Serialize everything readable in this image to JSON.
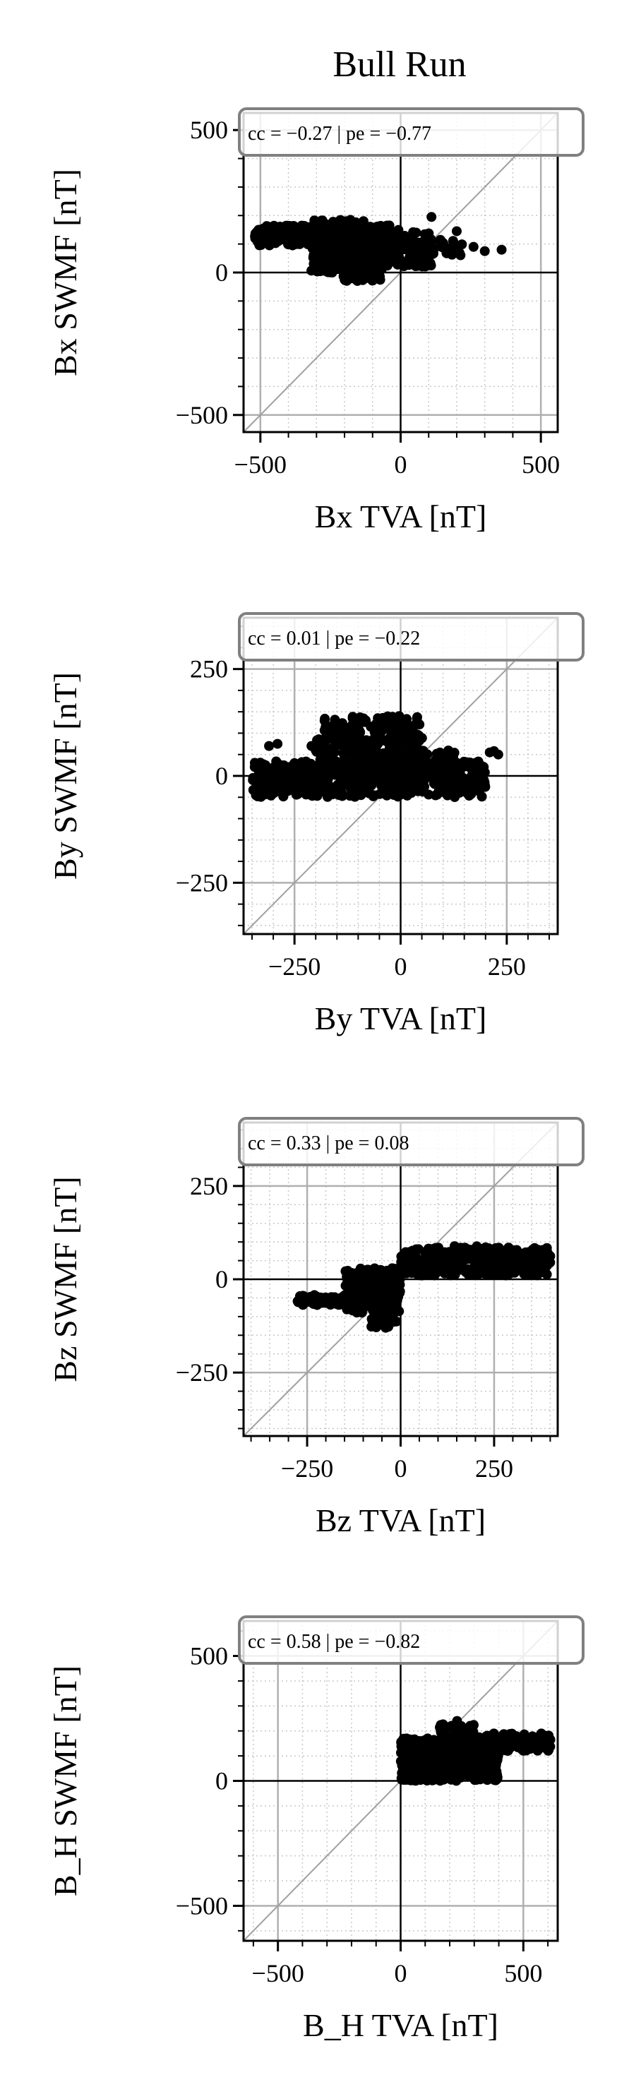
{
  "title": "Bull Run",
  "chart_data": [
    {
      "type": "scatter",
      "xlabel": "Bx TVA [nT]",
      "ylabel": "Bx SWMF [nT]",
      "xlim": [
        -560,
        560
      ],
      "ylim": [
        -560,
        560
      ],
      "xticks": [
        -500,
        0,
        500
      ],
      "yticks": [
        -500,
        0,
        500
      ],
      "xticklabels": [
        "−500",
        "0",
        "500"
      ],
      "yticklabels": [
        "−500",
        "0",
        "500"
      ],
      "major_grid_step": 500,
      "minor_grid_step": 100,
      "stats_label": "cc = −0.27 | pe = −0.77",
      "stats": {
        "cc": -0.27,
        "pe": -0.77
      },
      "clusters": [
        {
          "x": [
            -520,
            -40
          ],
          "y": [
            95,
            165
          ],
          "n": 300
        },
        {
          "x": [
            -320,
            -130
          ],
          "y": [
            0,
            185
          ],
          "n": 240
        },
        {
          "x": [
            -130,
            110
          ],
          "y": [
            20,
            150
          ],
          "n": 200
        },
        {
          "x": [
            -210,
            -60
          ],
          "y": [
            -30,
            55
          ],
          "n": 80
        },
        {
          "x": [
            60,
            220
          ],
          "y": [
            60,
            120
          ],
          "n": 40
        }
      ],
      "points": [
        [
          -460,
          140
        ],
        [
          -480,
          130
        ],
        [
          110,
          195
        ],
        [
          200,
          145
        ],
        [
          260,
          90
        ],
        [
          300,
          75
        ],
        [
          360,
          80
        ],
        [
          -20,
          50
        ]
      ]
    },
    {
      "type": "scatter",
      "xlabel": "By TVA [nT]",
      "ylabel": "By SWMF [nT]",
      "xlim": [
        -370,
        370
      ],
      "ylim": [
        -370,
        370
      ],
      "xticks": [
        -250,
        0,
        250
      ],
      "yticks": [
        -250,
        0,
        250
      ],
      "xticklabels": [
        "−250",
        "0",
        "250"
      ],
      "yticklabels": [
        "−250",
        "0",
        "250"
      ],
      "major_grid_step": 250,
      "minor_grid_step": 50,
      "stats_label": "cc = 0.01 | pe = −0.22",
      "stats": {
        "cc": 0.01,
        "pe": -0.22
      },
      "clusters": [
        {
          "x": [
            -350,
            200
          ],
          "y": [
            -50,
            35
          ],
          "n": 560
        },
        {
          "x": [
            -200,
            60
          ],
          "y": [
            20,
            90
          ],
          "n": 170
        },
        {
          "x": [
            -180,
            50
          ],
          "y": [
            80,
            140
          ],
          "n": 130
        },
        {
          "x": [
            0,
            130
          ],
          "y": [
            -20,
            60
          ],
          "n": 80
        }
      ],
      "points": [
        [
          -310,
          70
        ],
        [
          -290,
          75
        ],
        [
          -210,
          70
        ],
        [
          -200,
          60
        ],
        [
          210,
          55
        ],
        [
          220,
          58
        ],
        [
          230,
          50
        ]
      ]
    },
    {
      "type": "scatter",
      "xlabel": "Bz TVA [nT]",
      "ylabel": "Bz SWMF [nT]",
      "xlim": [
        -420,
        420
      ],
      "ylim": [
        -420,
        420
      ],
      "xticks": [
        -250,
        0,
        250
      ],
      "yticks": [
        -250,
        0,
        250
      ],
      "xticklabels": [
        "−250",
        "0",
        "250"
      ],
      "yticklabels": [
        "−250",
        "0",
        "250"
      ],
      "major_grid_step": 250,
      "minor_grid_step": 50,
      "stats_label": "cc = 0.33 | pe = 0.08",
      "stats": {
        "cc": 0.33,
        "pe": 0.08
      },
      "clusters": [
        {
          "x": [
            -280,
            -100
          ],
          "y": [
            -70,
            -40
          ],
          "n": 90
        },
        {
          "x": [
            -150,
            0
          ],
          "y": [
            -90,
            30
          ],
          "n": 160
        },
        {
          "x": [
            -80,
            -10
          ],
          "y": [
            -130,
            -40
          ],
          "n": 60
        },
        {
          "x": [
            0,
            400
          ],
          "y": [
            10,
            85
          ],
          "n": 330
        },
        {
          "x": [
            80,
            260
          ],
          "y": [
            40,
            90
          ],
          "n": 80
        }
      ],
      "points": [
        [
          -270,
          -55
        ],
        [
          -250,
          -60
        ],
        [
          390,
          60
        ],
        [
          400,
          62
        ],
        [
          -40,
          -130
        ]
      ]
    },
    {
      "type": "scatter",
      "xlabel": "B_H TVA [nT]",
      "ylabel": "B_H SWMF [nT]",
      "xlim": [
        -640,
        640
      ],
      "ylim": [
        -640,
        640
      ],
      "xticks": [
        -500,
        0,
        500
      ],
      "yticks": [
        -500,
        0,
        500
      ],
      "xticklabels": [
        "−500",
        "0",
        "500"
      ],
      "yticklabels": [
        "−500",
        "0",
        "500"
      ],
      "major_grid_step": 500,
      "minor_grid_step": 100,
      "stats_label": "cc = 0.58 | pe = −0.82",
      "stats": {
        "cc": 0.58,
        "pe": -0.82
      },
      "clusters": [
        {
          "x": [
            0,
            400
          ],
          "y": [
            0,
            170
          ],
          "n": 430
        },
        {
          "x": [
            150,
            300
          ],
          "y": [
            80,
            230
          ],
          "n": 120
        },
        {
          "x": [
            300,
            610
          ],
          "y": [
            120,
            190
          ],
          "n": 120
        },
        {
          "x": [
            0,
            110
          ],
          "y": [
            0,
            60
          ],
          "n": 60
        }
      ],
      "points": [
        [
          600,
          170
        ],
        [
          610,
          165
        ],
        [
          230,
          240
        ],
        [
          20,
          10
        ]
      ]
    }
  ]
}
